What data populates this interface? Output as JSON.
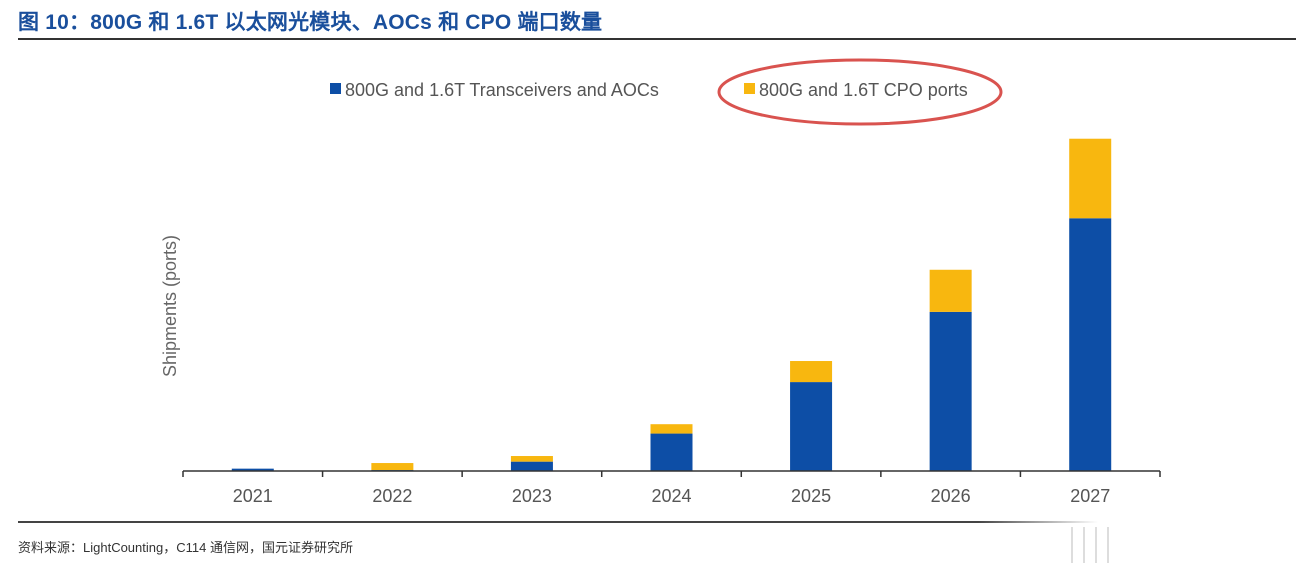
{
  "title": "图 10：800G 和 1.6T 以太网光模块、AOCs 和 CPO 端口数量",
  "source": "资料来源：LightCounting，C114 通信网，国元证券研究所",
  "colors": {
    "title": "#1a4f9c",
    "series_transceivers": "#0d4ea6",
    "series_cpo": "#f8b70f",
    "highlight_ellipse": "#d9534f"
  },
  "chart_data": {
    "type": "bar",
    "stacked": true,
    "title": "",
    "xlabel": "",
    "ylabel": "Shipments (ports)",
    "categories": [
      "2021",
      "2022",
      "2023",
      "2024",
      "2025",
      "2026",
      "2027"
    ],
    "series": [
      {
        "name": "800G and 1.6T Transceivers and AOCs",
        "color": "#0d4ea6",
        "values": [
          0.5,
          0.2,
          2.0,
          8.0,
          19.0,
          34.0,
          54.0
        ]
      },
      {
        "name": "800G and 1.6T CPO ports",
        "color": "#f8b70f",
        "values": [
          0.0,
          1.5,
          1.2,
          2.0,
          4.5,
          9.0,
          17.0
        ]
      }
    ],
    "ylim": [
      0,
      75
    ],
    "y_ticks_shown": false,
    "grid": false,
    "legend_position": "top-center",
    "annotation": "red ellipse around legend entry 800G and 1.6T CPO ports"
  }
}
